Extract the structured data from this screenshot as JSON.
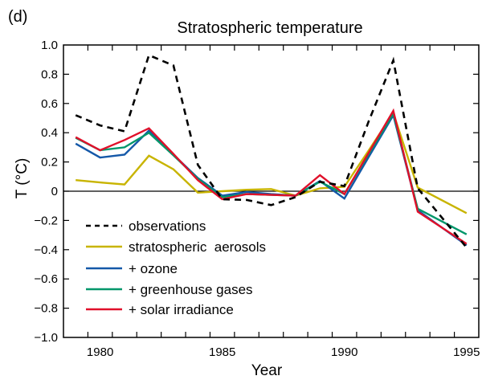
{
  "chart_data": {
    "type": "line",
    "panel_label": "(d)",
    "title": "Stratospheric temperature",
    "xlabel": "Year",
    "ylabel": "T (°C)",
    "xlim": [
      1978.5,
      1995.5
    ],
    "ylim": [
      -1.0,
      1.0
    ],
    "x_ticks": [
      1980,
      1985,
      1990,
      1995
    ],
    "x_minor_step": 1,
    "y_ticks": [
      -1.0,
      -0.8,
      -0.6,
      -0.4,
      -0.2,
      0,
      0.2,
      0.4,
      0.6,
      0.8,
      1.0
    ],
    "y_tick_labels": [
      "−1.0",
      "−0.8",
      "−0.6",
      "−0.4",
      "−0.2",
      "0",
      "0.2",
      "0.4",
      "0.6",
      "0.8",
      "1.0"
    ],
    "zero_line": true,
    "grid": false,
    "legend_position": "lower-left",
    "x": [
      1979,
      1980,
      1981,
      1982,
      1983,
      1984,
      1985,
      1986,
      1987,
      1988,
      1989,
      1990,
      1991,
      1992,
      1993,
      1995
    ],
    "series": [
      {
        "name": "observations",
        "style": "dashed",
        "color": "#000000",
        "values": [
          0.52,
          0.45,
          0.41,
          0.93,
          0.86,
          0.18,
          -0.055,
          -0.06,
          -0.095,
          -0.04,
          0.065,
          0.035,
          0.48,
          0.895,
          0.02,
          -0.385
        ]
      },
      {
        "name": "stratospheric  aerosols",
        "style": "solid",
        "color": "#C8B400",
        "values": [
          0.076,
          0.06,
          0.046,
          0.243,
          0.15,
          -0.01,
          0.0,
          0.01,
          0.015,
          -0.03,
          0.02,
          0.03,
          0.28,
          0.535,
          0.025,
          -0.15
        ]
      },
      {
        "name": "+ ozone",
        "style": "solid",
        "color": "#1458A8",
        "values": [
          0.325,
          0.23,
          0.25,
          0.415,
          0.25,
          0.09,
          -0.03,
          -0.005,
          -0.02,
          -0.03,
          0.07,
          -0.05,
          0.235,
          0.52,
          -0.13,
          -0.37
        ]
      },
      {
        "name": "+ greenhouse gases",
        "style": "solid",
        "color": "#00966A",
        "values": [
          0.365,
          0.28,
          0.3,
          0.4,
          0.245,
          0.085,
          -0.04,
          -0.02,
          -0.025,
          -0.03,
          0.065,
          -0.02,
          0.255,
          0.53,
          -0.12,
          -0.295
        ]
      },
      {
        "name": "+ solar irradiance",
        "style": "solid",
        "color": "#E0102A",
        "values": [
          0.37,
          0.28,
          0.35,
          0.43,
          0.255,
          0.075,
          -0.055,
          -0.02,
          -0.025,
          -0.03,
          0.11,
          -0.02,
          0.265,
          0.55,
          -0.14,
          -0.36
        ]
      }
    ]
  }
}
